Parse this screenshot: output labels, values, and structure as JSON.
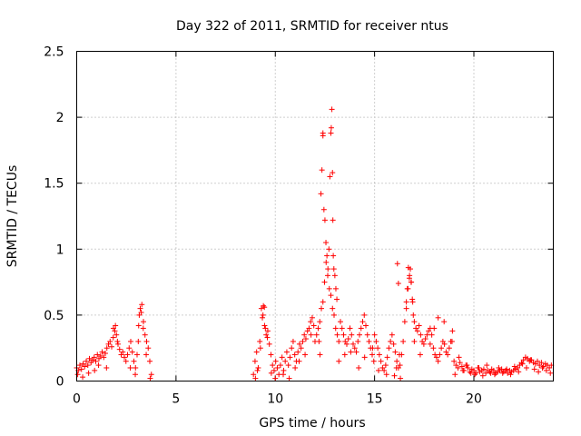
{
  "chart_data": {
    "type": "scatter",
    "title": "Day 322 of 2011, SRMTID for receiver ntus",
    "xlabel": "GPS time / hours",
    "ylabel": "SRMTID / TECUs",
    "xlim": [
      0,
      24
    ],
    "ylim": [
      0,
      2.5
    ],
    "xticks": [
      0,
      5,
      10,
      15,
      20
    ],
    "xtick_labels": [
      "0",
      "5",
      "10",
      "15",
      "20"
    ],
    "yticks": [
      0,
      0.5,
      1,
      1.5,
      2,
      2.5
    ],
    "ytick_labels": [
      "0",
      "0.5",
      "1",
      "1.5",
      "2",
      "2.5"
    ],
    "grid": true,
    "marker": "+",
    "series": [
      {
        "name": "ntus",
        "color": "#ff0000",
        "x": [
          0.0,
          0.08,
          0.16,
          0.24,
          0.32,
          0.4,
          0.48,
          0.56,
          0.64,
          0.72,
          0.8,
          0.88,
          0.96,
          1.04,
          1.12,
          1.2,
          1.28,
          1.36,
          1.44,
          1.52,
          1.6,
          1.68,
          1.76,
          1.84,
          1.92,
          2.0,
          2.08,
          2.16,
          2.24,
          2.32,
          2.4,
          2.48,
          2.56,
          2.64,
          2.72,
          2.8,
          2.88,
          2.96,
          3.04,
          3.12,
          3.2,
          3.28,
          3.36,
          3.44,
          3.52,
          3.6,
          3.68,
          3.76,
          0.05,
          0.3,
          0.6,
          0.9,
          1.1,
          1.5,
          1.85,
          1.95,
          2.05,
          2.7,
          2.95,
          3.1,
          3.15,
          3.25,
          3.35,
          3.5,
          3.7,
          8.9,
          8.98,
          9.06,
          9.14,
          9.22,
          9.3,
          9.38,
          9.46,
          9.54,
          9.62,
          9.7,
          9.78,
          9.86,
          9.94,
          10.02,
          10.1,
          10.18,
          10.26,
          10.34,
          10.42,
          10.5,
          10.58,
          10.66,
          10.74,
          10.82,
          10.9,
          10.98,
          11.06,
          11.14,
          11.22,
          11.3,
          11.38,
          11.46,
          11.54,
          11.62,
          11.7,
          11.78,
          11.86,
          11.94,
          9.0,
          9.1,
          9.25,
          9.35,
          9.4,
          9.45,
          9.5,
          9.6,
          9.8,
          10.0,
          10.4,
          10.7,
          11.0,
          11.2,
          11.5,
          11.8,
          12.0,
          12.08,
          12.16,
          12.24,
          12.32,
          12.4,
          12.48,
          12.56,
          12.64,
          12.72,
          12.8,
          12.88,
          12.96,
          13.04,
          13.12,
          13.2,
          13.28,
          13.36,
          13.44,
          13.52,
          13.6,
          13.68,
          13.76,
          13.84,
          13.92,
          14.0,
          14.08,
          14.16,
          14.24,
          14.32,
          14.4,
          14.48,
          14.56,
          14.64,
          14.72,
          14.8,
          14.88,
          14.96,
          12.3,
          12.35,
          12.4,
          12.4,
          12.45,
          12.5,
          12.55,
          12.6,
          12.65,
          12.7,
          12.75,
          12.8,
          12.82,
          12.85,
          12.88,
          12.9,
          12.92,
          12.95,
          13.0,
          13.05,
          13.1,
          12.2,
          12.25,
          13.2,
          13.5,
          13.8,
          14.2,
          14.5,
          14.9,
          15.0,
          15.08,
          15.16,
          15.24,
          15.32,
          15.4,
          15.48,
          15.56,
          15.64,
          15.72,
          15.8,
          15.88,
          15.96,
          16.04,
          16.12,
          16.2,
          16.28,
          16.36,
          16.44,
          16.52,
          16.6,
          16.68,
          16.76,
          16.84,
          16.92,
          17.0,
          17.08,
          17.16,
          17.24,
          17.32,
          17.4,
          17.48,
          17.56,
          17.64,
          17.72,
          17.8,
          17.88,
          17.96,
          18.04,
          18.12,
          18.2,
          18.28,
          18.36,
          18.44,
          18.52,
          18.6,
          18.68,
          18.76,
          18.84,
          18.92,
          15.2,
          15.6,
          16.0,
          16.1,
          16.15,
          16.2,
          16.25,
          16.3,
          16.6,
          16.65,
          16.7,
          16.75,
          16.8,
          16.85,
          16.9,
          16.95,
          17.0,
          17.3,
          17.8,
          18.0,
          18.2,
          18.5,
          18.9,
          19.0,
          19.1,
          19.2,
          19.3,
          19.4,
          19.5,
          19.6,
          19.7,
          19.8,
          19.9,
          20.0,
          20.1,
          20.2,
          20.3,
          20.4,
          20.5,
          20.6,
          20.7,
          20.8,
          20.9,
          21.0,
          21.1,
          21.2,
          21.3,
          21.4,
          21.5,
          21.6,
          21.7,
          21.8,
          21.9,
          22.0,
          22.1,
          22.2,
          22.3,
          22.4,
          22.5,
          22.6,
          22.7,
          22.8,
          22.9,
          23.0,
          23.1,
          23.2,
          23.3,
          23.4,
          23.5,
          23.6,
          23.7,
          23.8,
          23.9,
          19.05,
          19.25,
          19.45,
          19.65,
          19.85,
          20.05,
          20.25,
          20.45,
          20.65,
          20.85,
          21.05,
          21.25,
          21.45,
          21.65,
          21.85,
          22.05,
          22.25,
          22.45,
          22.65,
          22.85,
          23.05,
          23.25,
          23.45,
          23.65,
          23.85
        ],
        "y": [
          0.1,
          0.08,
          0.12,
          0.09,
          0.13,
          0.11,
          0.15,
          0.12,
          0.17,
          0.14,
          0.16,
          0.18,
          0.15,
          0.2,
          0.17,
          0.19,
          0.22,
          0.18,
          0.21,
          0.25,
          0.28,
          0.3,
          0.26,
          0.33,
          0.38,
          0.35,
          0.28,
          0.24,
          0.2,
          0.22,
          0.18,
          0.15,
          0.2,
          0.25,
          0.3,
          0.22,
          0.15,
          0.1,
          0.2,
          0.42,
          0.55,
          0.58,
          0.45,
          0.35,
          0.3,
          0.25,
          0.15,
          0.05,
          0.05,
          0.03,
          0.06,
          0.08,
          0.12,
          0.1,
          0.4,
          0.42,
          0.3,
          0.1,
          0.05,
          0.3,
          0.5,
          0.52,
          0.4,
          0.2,
          0.02,
          0.05,
          0.15,
          0.22,
          0.1,
          0.3,
          0.55,
          0.5,
          0.42,
          0.35,
          0.38,
          0.28,
          0.2,
          0.12,
          0.08,
          0.15,
          0.1,
          0.05,
          0.12,
          0.18,
          0.08,
          0.15,
          0.22,
          0.12,
          0.18,
          0.25,
          0.3,
          0.2,
          0.15,
          0.22,
          0.28,
          0.25,
          0.3,
          0.35,
          0.32,
          0.38,
          0.4,
          0.45,
          0.48,
          0.42,
          0.02,
          0.08,
          0.25,
          0.48,
          0.57,
          0.56,
          0.4,
          0.33,
          0.06,
          0.02,
          0.05,
          0.02,
          0.1,
          0.15,
          0.2,
          0.35,
          0.3,
          0.35,
          0.4,
          0.45,
          0.55,
          0.6,
          0.75,
          0.9,
          0.8,
          0.7,
          0.65,
          0.55,
          0.5,
          0.4,
          0.35,
          0.3,
          0.45,
          0.4,
          0.35,
          0.3,
          0.28,
          0.32,
          0.4,
          0.35,
          0.28,
          0.25,
          0.22,
          0.3,
          0.35,
          0.4,
          0.45,
          0.5,
          0.42,
          0.35,
          0.3,
          0.25,
          0.2,
          0.15,
          1.42,
          1.6,
          1.86,
          1.88,
          1.3,
          1.22,
          1.05,
          0.95,
          0.85,
          1.0,
          1.55,
          1.88,
          1.92,
          2.06,
          1.58,
          1.22,
          0.95,
          0.85,
          0.8,
          0.7,
          0.62,
          0.3,
          0.2,
          0.15,
          0.2,
          0.22,
          0.1,
          0.18,
          0.25,
          0.35,
          0.3,
          0.25,
          0.2,
          0.15,
          0.1,
          0.08,
          0.12,
          0.18,
          0.25,
          0.3,
          0.35,
          0.28,
          0.22,
          0.15,
          0.1,
          0.12,
          0.2,
          0.3,
          0.45,
          0.55,
          0.7,
          0.8,
          0.75,
          0.6,
          0.45,
          0.4,
          0.38,
          0.42,
          0.35,
          0.3,
          0.28,
          0.32,
          0.35,
          0.38,
          0.4,
          0.35,
          0.25,
          0.2,
          0.18,
          0.15,
          0.2,
          0.25,
          0.3,
          0.28,
          0.22,
          0.2,
          0.25,
          0.3,
          0.38,
          0.08,
          0.05,
          0.04,
          0.1,
          0.89,
          0.74,
          0.2,
          0.02,
          0.6,
          0.7,
          0.86,
          0.78,
          0.85,
          0.75,
          0.62,
          0.5,
          0.3,
          0.2,
          0.28,
          0.4,
          0.48,
          0.45,
          0.3,
          0.15,
          0.12,
          0.1,
          0.14,
          0.11,
          0.08,
          0.12,
          0.1,
          0.07,
          0.09,
          0.08,
          0.06,
          0.1,
          0.07,
          0.08,
          0.09,
          0.06,
          0.08,
          0.07,
          0.09,
          0.08,
          0.06,
          0.07,
          0.08,
          0.09,
          0.07,
          0.08,
          0.06,
          0.08,
          0.07,
          0.08,
          0.09,
          0.1,
          0.12,
          0.14,
          0.16,
          0.18,
          0.17,
          0.15,
          0.16,
          0.14,
          0.13,
          0.15,
          0.12,
          0.14,
          0.11,
          0.13,
          0.12,
          0.1,
          0.12,
          0.05,
          0.18,
          0.08,
          0.12,
          0.06,
          0.05,
          0.1,
          0.04,
          0.12,
          0.06,
          0.05,
          0.1,
          0.06,
          0.09,
          0.05,
          0.11,
          0.07,
          0.13,
          0.1,
          0.16,
          0.09,
          0.07,
          0.1,
          0.08,
          0.06
        ]
      }
    ]
  }
}
